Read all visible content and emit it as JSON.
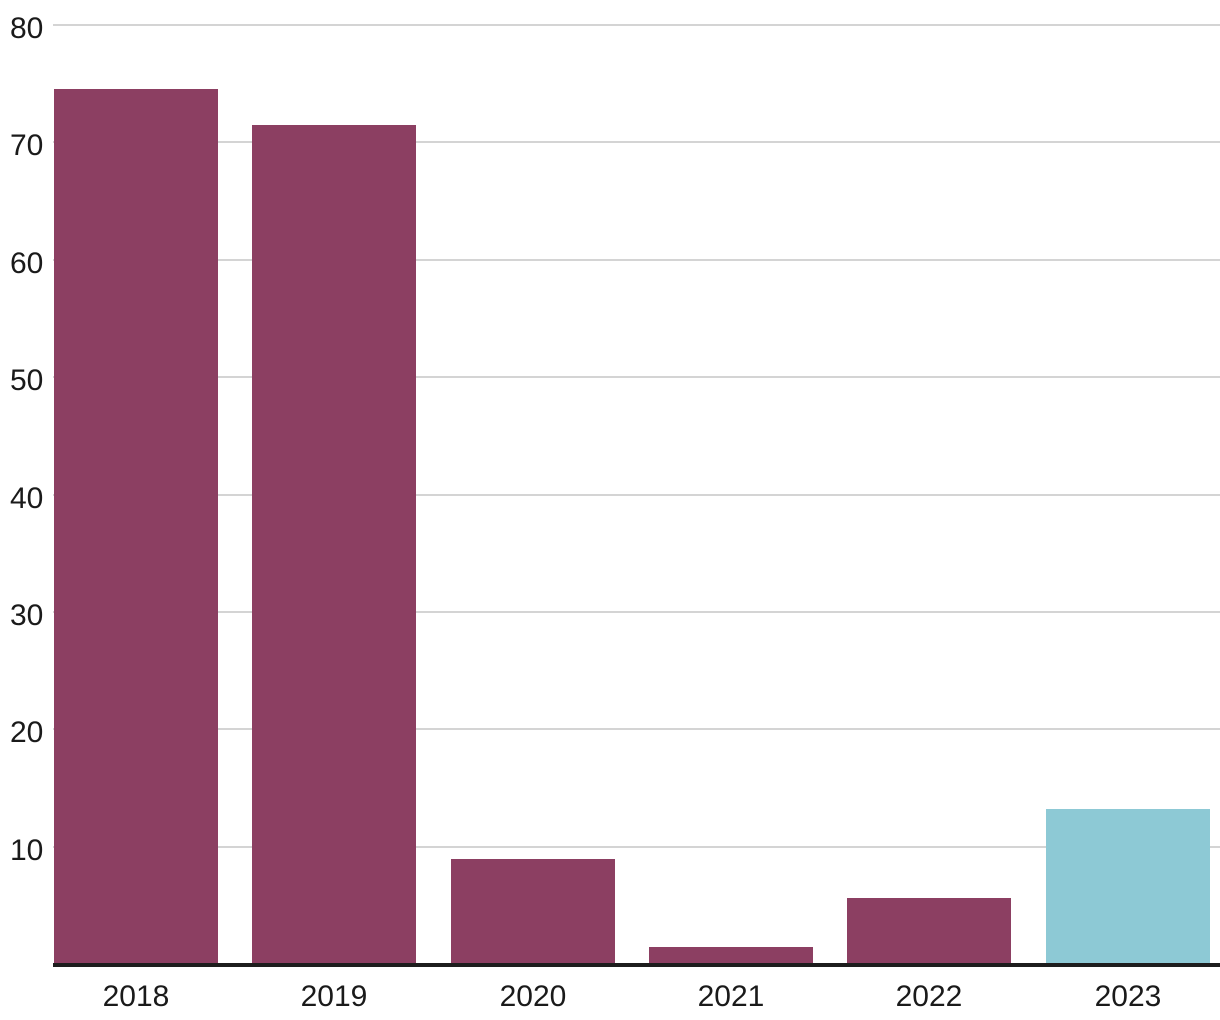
{
  "chart_data": {
    "type": "bar",
    "title": "",
    "xlabel": "",
    "ylabel": "",
    "categories": [
      "2018",
      "2019",
      "2020",
      "2021",
      "2022",
      "2023"
    ],
    "values": [
      74.5,
      71.4,
      8.9,
      1.4,
      5.5,
      13.1
    ],
    "bar_colors": [
      "#8c3f62",
      "#8c3f62",
      "#8c3f62",
      "#8c3f62",
      "#8c3f62",
      "#8dc9d5"
    ],
    "ylim": [
      0,
      80
    ],
    "yticks": [
      10,
      20,
      30,
      40,
      50,
      60,
      70,
      80
    ],
    "grid": "horizontal",
    "legend": "none",
    "colors": {
      "bar_default": "#8c3f62",
      "bar_highlight": "#8dc9d5",
      "gridline": "#d4d4d4",
      "axis_line": "#1d1d1d",
      "tick_text": "#1a1a1a",
      "background": "#ffffff"
    }
  }
}
